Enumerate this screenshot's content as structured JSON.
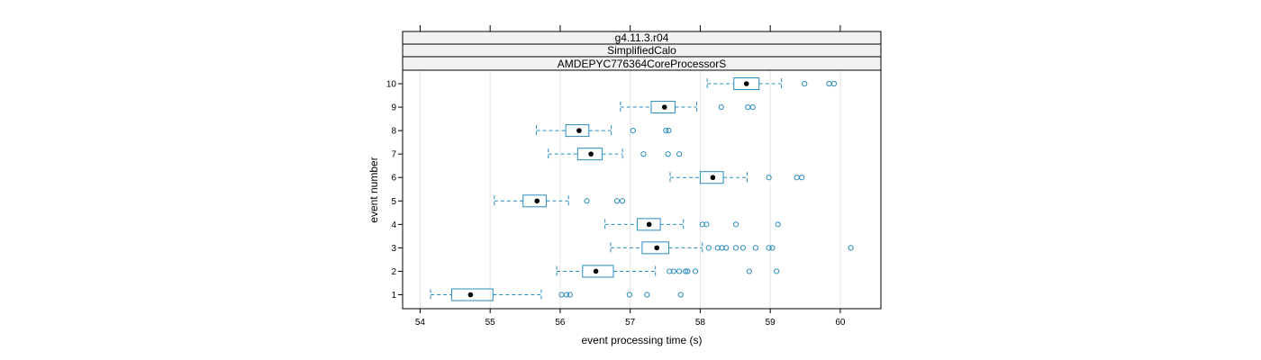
{
  "chart_data": {
    "type": "boxplot",
    "strips": [
      "g4.11.3.r04",
      "SimplifiedCalo",
      "AMDEPYC776364CoreProcessorS"
    ],
    "xlabel": "event processing time (s)",
    "ylabel": "event number",
    "xlim": [
      53.75,
      60.58
    ],
    "x_ticks": [
      54,
      55,
      56,
      57,
      58,
      59,
      60
    ],
    "categories": [
      "1",
      "2",
      "3",
      "4",
      "5",
      "6",
      "7",
      "8",
      "9",
      "10"
    ],
    "grid": true,
    "colors": {
      "box": "#2b8cbe",
      "median": "#000000",
      "grid": "#e6e6e6",
      "strip_bg": "#f2f2f2"
    },
    "boxes": [
      {
        "event": "1",
        "whisker_low": 54.15,
        "q1": 54.45,
        "median": 54.72,
        "q3": 55.04,
        "whisker_high": 55.73,
        "outliers": [
          56.02,
          56.09,
          56.14,
          56.99,
          57.24,
          57.72
        ]
      },
      {
        "event": "2",
        "whisker_low": 55.95,
        "q1": 56.32,
        "median": 56.51,
        "q3": 56.76,
        "whisker_high": 57.36,
        "outliers": [
          57.56,
          57.62,
          57.7,
          57.79,
          57.82,
          57.93,
          58.7,
          59.09
        ]
      },
      {
        "event": "3",
        "whisker_low": 56.72,
        "q1": 57.17,
        "median": 57.38,
        "q3": 57.55,
        "whisker_high": 58.03,
        "outliers": [
          58.12,
          58.25,
          58.31,
          58.37,
          58.51,
          58.61,
          58.79,
          58.98,
          59.03,
          60.15
        ]
      },
      {
        "event": "4",
        "whisker_low": 56.64,
        "q1": 57.1,
        "median": 57.27,
        "q3": 57.43,
        "whisker_high": 57.76,
        "outliers": [
          58.03,
          58.09,
          58.51,
          59.11
        ]
      },
      {
        "event": "5",
        "whisker_low": 55.06,
        "q1": 55.47,
        "median": 55.67,
        "q3": 55.8,
        "whisker_high": 56.12,
        "outliers": [
          56.38,
          56.81,
          56.89
        ]
      },
      {
        "event": "6",
        "whisker_low": 57.57,
        "q1": 58.0,
        "median": 58.18,
        "q3": 58.33,
        "whisker_high": 58.67,
        "outliers": [
          58.98,
          59.38,
          59.45
        ]
      },
      {
        "event": "7",
        "whisker_low": 55.83,
        "q1": 56.25,
        "median": 56.44,
        "q3": 56.6,
        "whisker_high": 56.89,
        "outliers": [
          57.19,
          57.54,
          57.7
        ]
      },
      {
        "event": "8",
        "whisker_low": 55.66,
        "q1": 56.08,
        "median": 56.27,
        "q3": 56.41,
        "whisker_high": 56.73,
        "outliers": [
          57.04,
          57.51,
          57.55
        ]
      },
      {
        "event": "9",
        "whisker_low": 56.86,
        "q1": 57.3,
        "median": 57.49,
        "q3": 57.64,
        "whisker_high": 57.95,
        "outliers": [
          58.3,
          58.68,
          58.75
        ]
      },
      {
        "event": "10",
        "whisker_low": 58.1,
        "q1": 58.48,
        "median": 58.66,
        "q3": 58.84,
        "whisker_high": 59.16,
        "outliers": [
          59.49,
          59.84,
          59.91
        ]
      }
    ]
  }
}
